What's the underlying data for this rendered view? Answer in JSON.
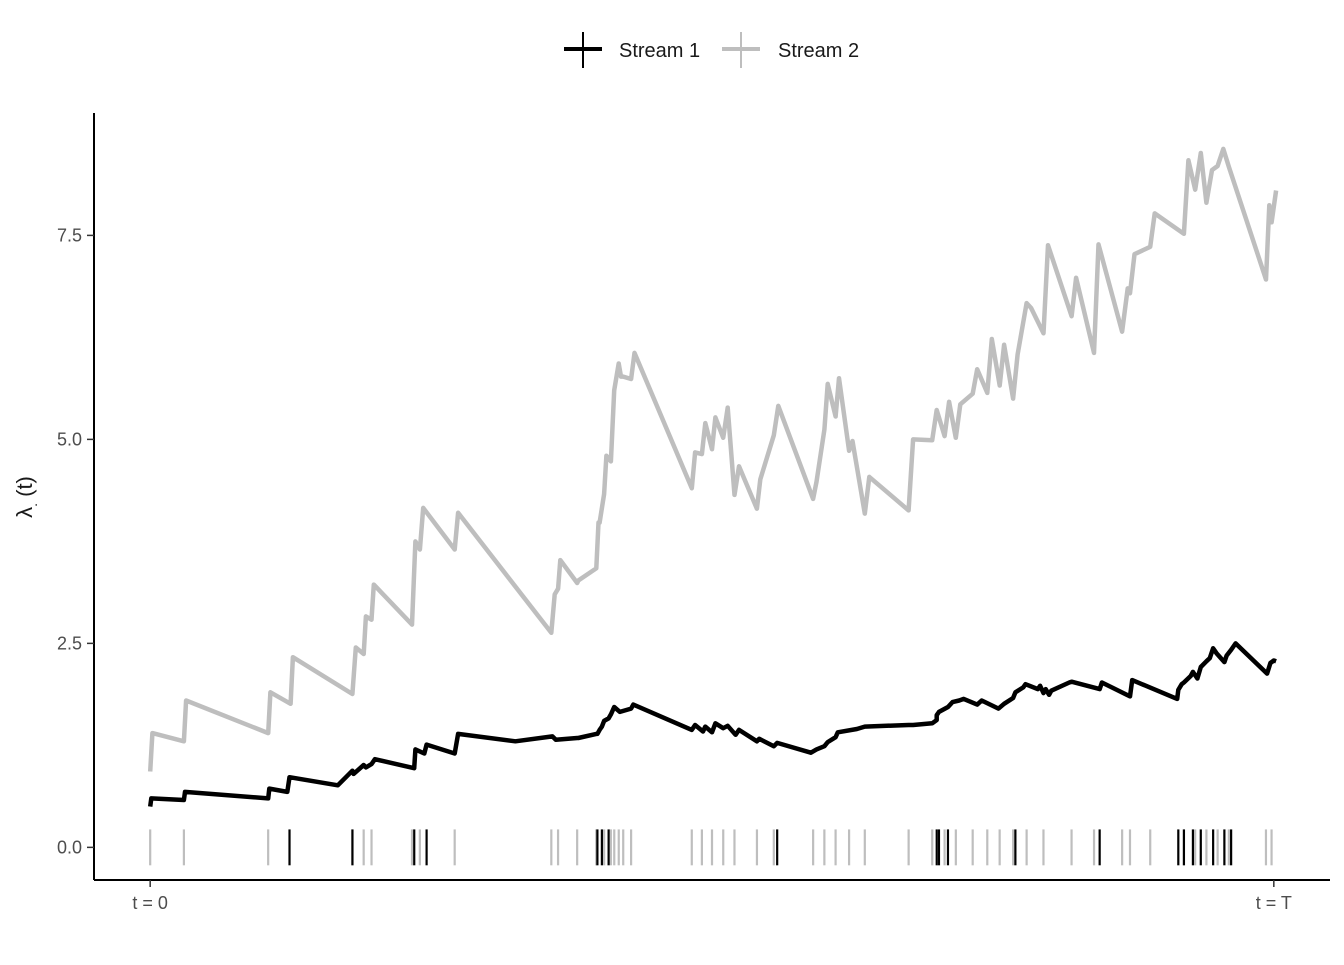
{
  "chart_data": {
    "type": "line",
    "title": "",
    "xlabel": "",
    "ylabel": "λ. (t)",
    "ylabel_main": "λ",
    "ylabel_sub": ".",
    "ylabel_arg": " (t)",
    "ylim": [
      -0.4,
      9.0
    ],
    "yticks": [
      0.0,
      2.5,
      5.0,
      7.5
    ],
    "ytick_labels": [
      "0.0",
      "2.5",
      "5.0",
      "7.5"
    ],
    "xlim": [
      -0.05,
      1.05
    ],
    "xticks": [
      0,
      1
    ],
    "xtick_labels": [
      "t = 0",
      "t = T"
    ],
    "grid": false,
    "legend_position": "top",
    "colors": {
      "stream1": "#000000",
      "stream2": "#bebebe",
      "axis": "#000000"
    },
    "series": [
      {
        "name": "Stream 1",
        "color": "#000000",
        "x": [
          0.0,
          0.001,
          0.03,
          0.031,
          0.105,
          0.106,
          0.122,
          0.124,
          0.167,
          0.18,
          0.181,
          0.19,
          0.192,
          0.197,
          0.2,
          0.235,
          0.236,
          0.244,
          0.246,
          0.271,
          0.274,
          0.325,
          0.358,
          0.361,
          0.38,
          0.381,
          0.397,
          0.398,
          0.4,
          0.402,
          0.404,
          0.408,
          0.41,
          0.413,
          0.418,
          0.41801,
          0.428,
          0.43,
          0.482,
          0.485,
          0.492,
          0.494,
          0.5,
          0.503,
          0.51,
          0.514,
          0.521,
          0.524,
          0.54,
          0.542,
          0.555,
          0.558,
          0.588,
          0.593,
          0.6,
          0.603,
          0.61,
          0.612,
          0.629,
          0.636,
          0.675,
          0.679,
          0.696,
          0.7,
          0.7,
          0.702,
          0.71,
          0.714,
          0.72,
          0.724,
          0.736,
          0.74,
          0.755,
          0.76,
          0.768,
          0.77,
          0.777,
          0.779,
          0.79,
          0.792,
          0.795,
          0.797,
          0.8,
          0.802,
          0.818,
          0.82,
          0.845,
          0.847,
          0.872,
          0.874,
          0.914,
          0.915,
          0.918,
          0.92,
          0.926,
          0.928,
          0.932,
          0.935,
          0.94,
          0.943,
          0.946,
          0.949,
          0.956,
          0.958,
          0.962,
          0.966,
          0.994,
          0.997,
          1.0,
          1.002
        ],
        "y": [
          0.5,
          0.6,
          0.58,
          0.68,
          0.6,
          0.72,
          0.68,
          0.86,
          0.76,
          0.94,
          0.9,
          1.01,
          0.98,
          1.02,
          1.08,
          0.97,
          1.2,
          1.15,
          1.26,
          1.15,
          1.39,
          1.3,
          1.36,
          1.32,
          1.34,
          1.34,
          1.39,
          1.39,
          1.44,
          1.48,
          1.55,
          1.58,
          1.63,
          1.72,
          1.66,
          1.66,
          1.7,
          1.75,
          1.44,
          1.5,
          1.42,
          1.48,
          1.41,
          1.52,
          1.46,
          1.49,
          1.38,
          1.44,
          1.3,
          1.33,
          1.24,
          1.28,
          1.16,
          1.2,
          1.24,
          1.29,
          1.35,
          1.41,
          1.45,
          1.48,
          1.5,
          1.5,
          1.52,
          1.56,
          1.62,
          1.66,
          1.72,
          1.78,
          1.8,
          1.82,
          1.75,
          1.8,
          1.7,
          1.76,
          1.83,
          1.9,
          1.96,
          2.0,
          1.94,
          1.98,
          1.89,
          1.94,
          1.87,
          1.92,
          2.02,
          2.03,
          1.94,
          2.02,
          1.85,
          2.05,
          1.82,
          1.93,
          2.0,
          2.02,
          2.1,
          2.15,
          2.07,
          2.21,
          2.28,
          2.32,
          2.44,
          2.38,
          2.27,
          2.35,
          2.42,
          2.5,
          2.13,
          2.26,
          2.29,
          2.28
        ]
      },
      {
        "name": "Stream 2",
        "color": "#bebebe",
        "x": [
          0.0,
          0.002,
          0.03,
          0.032,
          0.105,
          0.107,
          0.125,
          0.127,
          0.18,
          0.183,
          0.19,
          0.192,
          0.197,
          0.199,
          0.233,
          0.236,
          0.24,
          0.243,
          0.271,
          0.274,
          0.357,
          0.36,
          0.363,
          0.365,
          0.38,
          0.381,
          0.397,
          0.399,
          0.4,
          0.404,
          0.406,
          0.41,
          0.413,
          0.417,
          0.419,
          0.421,
          0.428,
          0.431,
          0.482,
          0.485,
          0.491,
          0.494,
          0.5,
          0.503,
          0.51,
          0.514,
          0.52,
          0.524,
          0.54,
          0.543,
          0.555,
          0.559,
          0.59,
          0.593,
          0.6,
          0.603,
          0.61,
          0.613,
          0.622,
          0.625,
          0.636,
          0.64,
          0.675,
          0.679,
          0.696,
          0.7,
          0.707,
          0.711,
          0.717,
          0.721,
          0.732,
          0.736,
          0.745,
          0.749,
          0.756,
          0.76,
          0.768,
          0.772,
          0.78,
          0.784,
          0.795,
          0.799,
          0.82,
          0.824,
          0.84,
          0.844,
          0.865,
          0.87,
          0.872,
          0.876,
          0.89,
          0.894,
          0.92,
          0.924,
          0.93,
          0.935,
          0.94,
          0.945,
          0.95,
          0.955,
          0.96,
          0.993,
          0.996,
          0.998,
          1.002
        ],
        "y": [
          0.93,
          1.4,
          1.3,
          1.8,
          1.4,
          1.9,
          1.76,
          2.33,
          1.88,
          2.45,
          2.37,
          2.83,
          2.79,
          3.22,
          2.73,
          3.75,
          3.65,
          4.16,
          3.65,
          4.1,
          2.63,
          3.1,
          3.17,
          3.52,
          3.24,
          3.27,
          3.42,
          3.98,
          3.98,
          4.33,
          4.8,
          4.73,
          5.6,
          5.93,
          5.77,
          5.77,
          5.74,
          6.06,
          4.4,
          4.84,
          4.82,
          5.2,
          4.88,
          5.27,
          5.02,
          5.39,
          4.32,
          4.67,
          4.15,
          4.51,
          5.05,
          5.41,
          4.27,
          4.48,
          5.12,
          5.68,
          5.28,
          5.75,
          4.86,
          4.98,
          4.09,
          4.54,
          4.13,
          5.0,
          4.99,
          5.36,
          5.04,
          5.46,
          5.02,
          5.43,
          5.56,
          5.86,
          5.57,
          6.23,
          5.66,
          6.16,
          5.5,
          6.04,
          6.67,
          6.61,
          6.3,
          7.38,
          6.51,
          6.98,
          6.06,
          7.39,
          6.32,
          6.85,
          6.79,
          7.27,
          7.36,
          7.77,
          7.52,
          8.42,
          8.06,
          8.51,
          7.9,
          8.3,
          8.35,
          8.56,
          8.34,
          6.96,
          7.87,
          7.66,
          8.05
        ]
      }
    ],
    "events": [
      {
        "series": "Stream 2",
        "x": [
          0.0,
          0.03,
          0.105,
          0.18,
          0.19,
          0.197,
          0.233,
          0.24,
          0.271,
          0.357,
          0.363,
          0.38,
          0.397,
          0.404,
          0.41,
          0.413,
          0.417,
          0.421,
          0.428,
          0.482,
          0.491,
          0.5,
          0.51,
          0.52,
          0.54,
          0.555,
          0.59,
          0.6,
          0.61,
          0.622,
          0.636,
          0.675,
          0.696,
          0.707,
          0.717,
          0.732,
          0.745,
          0.756,
          0.768,
          0.78,
          0.795,
          0.82,
          0.84,
          0.865,
          0.872,
          0.89,
          0.92,
          0.93,
          0.94,
          0.95,
          0.96,
          0.993,
          0.998
        ]
      },
      {
        "series": "Stream 1",
        "x": [
          0.124,
          0.18,
          0.235,
          0.246,
          0.398,
          0.402,
          0.408,
          0.558,
          0.7,
          0.702,
          0.71,
          0.77,
          0.845,
          0.915,
          0.92,
          0.928,
          0.935,
          0.946,
          0.956,
          0.962
        ]
      }
    ]
  }
}
